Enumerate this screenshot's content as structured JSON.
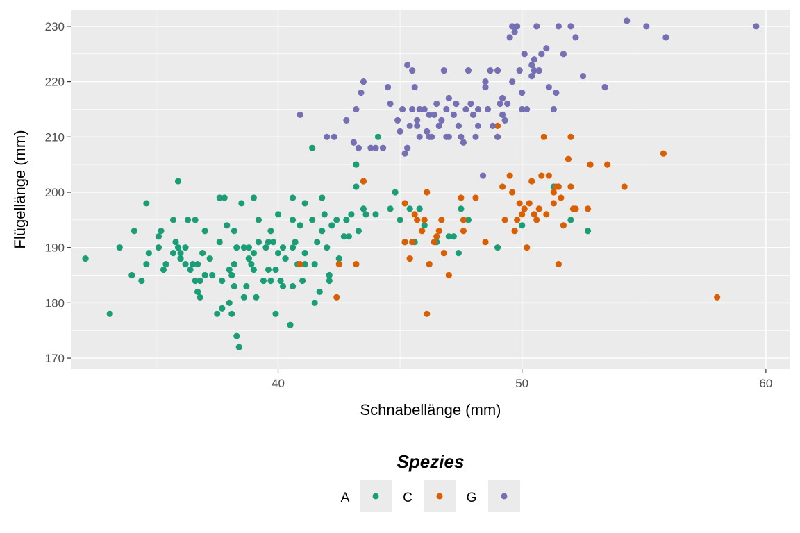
{
  "chart_data": {
    "type": "scatter",
    "xlabel": "Schnabellänge (mm)",
    "ylabel": "Flügellänge (mm)",
    "xlim": [
      31.5,
      61.0
    ],
    "ylim": [
      168.0,
      233.0
    ],
    "x_ticks": [
      40,
      50,
      60
    ],
    "y_ticks": [
      170,
      180,
      190,
      200,
      210,
      220,
      230
    ],
    "grid": true,
    "panel_background": "#ebebeb",
    "legend": {
      "title": "Spezies",
      "position": "bottom",
      "entries": [
        {
          "label": "A",
          "color": "#1b9e77"
        },
        {
          "label": "C",
          "color": "#d95f02"
        },
        {
          "label": "G",
          "color": "#7570b3"
        }
      ]
    },
    "series": [
      {
        "name": "A",
        "color": "#1b9e77",
        "points": [
          [
            32.1,
            188
          ],
          [
            33.1,
            178
          ],
          [
            33.5,
            190
          ],
          [
            34.0,
            185
          ],
          [
            34.1,
            193
          ],
          [
            34.4,
            184
          ],
          [
            34.6,
            187
          ],
          [
            34.6,
            198
          ],
          [
            34.7,
            189
          ],
          [
            35.1,
            190
          ],
          [
            35.1,
            192
          ],
          [
            35.2,
            193
          ],
          [
            35.3,
            186
          ],
          [
            35.4,
            187
          ],
          [
            35.7,
            195
          ],
          [
            35.7,
            189
          ],
          [
            35.8,
            191
          ],
          [
            35.9,
            190
          ],
          [
            35.9,
            202
          ],
          [
            36.0,
            188
          ],
          [
            36.0,
            189
          ],
          [
            36.2,
            187
          ],
          [
            36.2,
            190
          ],
          [
            36.3,
            195
          ],
          [
            36.4,
            186
          ],
          [
            36.5,
            187
          ],
          [
            36.6,
            195
          ],
          [
            36.6,
            184
          ],
          [
            36.7,
            187
          ],
          [
            36.7,
            182
          ],
          [
            36.8,
            181
          ],
          [
            36.8,
            184
          ],
          [
            36.9,
            189
          ],
          [
            37.0,
            185
          ],
          [
            37.0,
            193
          ],
          [
            37.2,
            188
          ],
          [
            37.3,
            185
          ],
          [
            37.5,
            178
          ],
          [
            37.6,
            191
          ],
          [
            37.6,
            199
          ],
          [
            37.7,
            184
          ],
          [
            37.7,
            179
          ],
          [
            37.8,
            199
          ],
          [
            37.9,
            194
          ],
          [
            38.0,
            186
          ],
          [
            38.0,
            180
          ],
          [
            38.1,
            185
          ],
          [
            38.1,
            178
          ],
          [
            38.2,
            187
          ],
          [
            38.2,
            183
          ],
          [
            38.2,
            193
          ],
          [
            38.3,
            190
          ],
          [
            38.3,
            174
          ],
          [
            38.4,
            172
          ],
          [
            38.5,
            198
          ],
          [
            38.6,
            190
          ],
          [
            38.6,
            181
          ],
          [
            38.7,
            183
          ],
          [
            38.8,
            188
          ],
          [
            38.8,
            190
          ],
          [
            38.9,
            187
          ],
          [
            39.0,
            189
          ],
          [
            39.0,
            186
          ],
          [
            39.0,
            199
          ],
          [
            39.1,
            181
          ],
          [
            39.2,
            191
          ],
          [
            39.2,
            195
          ],
          [
            39.4,
            184
          ],
          [
            39.5,
            190
          ],
          [
            39.6,
            191
          ],
          [
            39.6,
            186
          ],
          [
            39.7,
            184
          ],
          [
            39.7,
            193
          ],
          [
            39.8,
            191
          ],
          [
            39.9,
            178
          ],
          [
            39.9,
            186
          ],
          [
            40.0,
            189
          ],
          [
            40.0,
            196
          ],
          [
            40.1,
            184
          ],
          [
            40.2,
            183
          ],
          [
            40.2,
            190
          ],
          [
            40.3,
            188
          ],
          [
            40.5,
            176
          ],
          [
            40.6,
            183
          ],
          [
            40.6,
            190
          ],
          [
            40.6,
            195
          ],
          [
            40.6,
            199
          ],
          [
            40.7,
            191
          ],
          [
            40.8,
            187
          ],
          [
            40.9,
            194
          ],
          [
            41.0,
            184
          ],
          [
            41.1,
            189
          ],
          [
            41.1,
            187
          ],
          [
            41.1,
            198
          ],
          [
            41.4,
            208
          ],
          [
            41.4,
            195
          ],
          [
            41.5,
            180
          ],
          [
            41.5,
            187
          ],
          [
            41.6,
            191
          ],
          [
            41.7,
            182
          ],
          [
            41.8,
            193
          ],
          [
            41.8,
            199
          ],
          [
            41.9,
            196
          ],
          [
            42.0,
            190
          ],
          [
            42.1,
            184
          ],
          [
            42.1,
            185
          ],
          [
            42.2,
            194
          ],
          [
            42.4,
            195
          ],
          [
            42.5,
            188
          ],
          [
            42.7,
            192
          ],
          [
            42.8,
            195
          ],
          [
            42.9,
            192
          ],
          [
            43.0,
            196
          ],
          [
            43.2,
            205
          ],
          [
            43.2,
            201
          ],
          [
            43.3,
            193
          ],
          [
            43.5,
            197
          ],
          [
            43.6,
            196
          ],
          [
            44.0,
            196
          ],
          [
            44.1,
            210
          ],
          [
            44.6,
            197
          ],
          [
            44.8,
            200
          ],
          [
            45.0,
            195
          ],
          [
            45.2,
            191
          ],
          [
            45.4,
            197
          ],
          [
            45.6,
            191
          ],
          [
            45.8,
            197
          ],
          [
            46.0,
            194
          ],
          [
            46.5,
            191
          ],
          [
            47.0,
            192
          ],
          [
            47.2,
            192
          ],
          [
            47.4,
            189
          ],
          [
            47.5,
            197
          ],
          [
            47.8,
            195
          ],
          [
            49.0,
            190
          ],
          [
            50.0,
            194
          ],
          [
            51.3,
            201
          ],
          [
            52.0,
            195
          ],
          [
            52.7,
            193
          ]
        ]
      },
      {
        "name": "C",
        "color": "#d95f02",
        "points": [
          [
            45.2,
            198
          ],
          [
            45.2,
            191
          ],
          [
            45.4,
            188
          ],
          [
            45.5,
            191
          ],
          [
            45.6,
            196
          ],
          [
            45.7,
            195
          ],
          [
            45.9,
            193
          ],
          [
            46.0,
            195
          ],
          [
            46.1,
            178
          ],
          [
            46.2,
            187
          ],
          [
            46.4,
            191
          ],
          [
            46.5,
            192
          ],
          [
            46.6,
            193
          ],
          [
            46.7,
            195
          ],
          [
            46.8,
            189
          ],
          [
            47.0,
            185
          ],
          [
            47.5,
            199
          ],
          [
            47.6,
            195
          ],
          [
            48.1,
            199
          ],
          [
            48.5,
            191
          ],
          [
            49.0,
            210
          ],
          [
            49.0,
            212
          ],
          [
            49.3,
            195
          ],
          [
            49.5,
            203
          ],
          [
            49.6,
            200
          ],
          [
            49.7,
            193
          ],
          [
            49.8,
            195
          ],
          [
            49.9,
            198
          ],
          [
            50.0,
            196
          ],
          [
            50.1,
            197
          ],
          [
            50.2,
            190
          ],
          [
            50.3,
            198
          ],
          [
            50.4,
            202
          ],
          [
            50.6,
            195
          ],
          [
            50.7,
            197
          ],
          [
            50.8,
            203
          ],
          [
            50.9,
            210
          ],
          [
            51.0,
            196
          ],
          [
            51.1,
            203
          ],
          [
            51.3,
            200
          ],
          [
            51.4,
            201
          ],
          [
            51.5,
            187
          ],
          [
            51.5,
            201
          ],
          [
            51.6,
            199
          ],
          [
            51.7,
            194
          ],
          [
            51.9,
            206
          ],
          [
            52.0,
            210
          ],
          [
            52.0,
            201
          ],
          [
            52.1,
            197
          ],
          [
            52.2,
            197
          ],
          [
            52.7,
            197
          ],
          [
            52.8,
            205
          ],
          [
            53.5,
            205
          ],
          [
            54.2,
            201
          ],
          [
            55.8,
            207
          ],
          [
            58.0,
            181
          ],
          [
            43.2,
            187
          ],
          [
            42.5,
            187
          ],
          [
            42.4,
            181
          ],
          [
            40.9,
            187
          ],
          [
            43.5,
            202
          ],
          [
            46.1,
            200
          ],
          [
            47.6,
            193
          ],
          [
            50.5,
            196
          ],
          [
            51.3,
            198
          ],
          [
            49.2,
            201
          ]
        ]
      },
      {
        "name": "G",
        "color": "#7570b3",
        "points": [
          [
            40.9,
            214
          ],
          [
            42.0,
            210
          ],
          [
            42.3,
            210
          ],
          [
            42.8,
            213
          ],
          [
            43.1,
            209
          ],
          [
            43.2,
            215
          ],
          [
            43.3,
            208
          ],
          [
            43.4,
            218
          ],
          [
            43.5,
            220
          ],
          [
            43.8,
            208
          ],
          [
            44.0,
            208
          ],
          [
            44.3,
            208
          ],
          [
            44.5,
            219
          ],
          [
            44.6,
            216
          ],
          [
            44.9,
            213
          ],
          [
            45.0,
            211
          ],
          [
            45.1,
            215
          ],
          [
            45.2,
            207
          ],
          [
            45.3,
            223
          ],
          [
            45.3,
            208
          ],
          [
            45.4,
            212
          ],
          [
            45.5,
            215
          ],
          [
            45.6,
            219
          ],
          [
            45.7,
            212
          ],
          [
            45.8,
            210
          ],
          [
            46.0,
            215
          ],
          [
            46.1,
            211
          ],
          [
            46.2,
            214
          ],
          [
            46.3,
            210
          ],
          [
            46.4,
            214
          ],
          [
            46.5,
            216
          ],
          [
            46.6,
            212
          ],
          [
            46.7,
            213
          ],
          [
            46.8,
            222
          ],
          [
            46.9,
            215
          ],
          [
            47.0,
            217
          ],
          [
            47.2,
            214
          ],
          [
            47.3,
            216
          ],
          [
            47.4,
            212
          ],
          [
            47.5,
            210
          ],
          [
            47.6,
            209
          ],
          [
            47.7,
            215
          ],
          [
            47.8,
            222
          ],
          [
            48.0,
            214
          ],
          [
            48.1,
            210
          ],
          [
            48.2,
            212
          ],
          [
            48.4,
            203
          ],
          [
            48.5,
            220
          ],
          [
            48.6,
            215
          ],
          [
            48.7,
            222
          ],
          [
            48.8,
            212
          ],
          [
            49.0,
            222
          ],
          [
            49.1,
            216
          ],
          [
            49.2,
            214
          ],
          [
            49.3,
            213
          ],
          [
            49.4,
            216
          ],
          [
            49.5,
            228
          ],
          [
            49.6,
            230
          ],
          [
            49.7,
            229
          ],
          [
            49.8,
            230
          ],
          [
            49.9,
            222
          ],
          [
            50.0,
            218
          ],
          [
            50.1,
            225
          ],
          [
            50.2,
            215
          ],
          [
            50.4,
            223
          ],
          [
            50.5,
            224
          ],
          [
            50.6,
            230
          ],
          [
            50.7,
            222
          ],
          [
            50.8,
            225
          ],
          [
            51.0,
            226
          ],
          [
            51.1,
            219
          ],
          [
            51.3,
            215
          ],
          [
            51.5,
            230
          ],
          [
            51.7,
            225
          ],
          [
            52.0,
            230
          ],
          [
            52.2,
            228
          ],
          [
            52.5,
            221
          ],
          [
            53.4,
            219
          ],
          [
            54.3,
            231
          ],
          [
            55.1,
            230
          ],
          [
            55.9,
            228
          ],
          [
            59.6,
            230
          ],
          [
            47.0,
            210
          ],
          [
            47.4,
            212
          ],
          [
            48.2,
            215
          ],
          [
            46.9,
            210
          ],
          [
            45.8,
            215
          ],
          [
            46.2,
            210
          ],
          [
            45.5,
            222
          ],
          [
            50.4,
            221
          ],
          [
            49.0,
            210
          ],
          [
            49.2,
            217
          ],
          [
            49.6,
            220
          ],
          [
            50.0,
            215
          ],
          [
            50.5,
            222
          ],
          [
            51.4,
            218
          ],
          [
            48.5,
            219
          ],
          [
            47.9,
            216
          ],
          [
            46.6,
            212
          ],
          [
            45.7,
            213
          ]
        ]
      }
    ]
  }
}
